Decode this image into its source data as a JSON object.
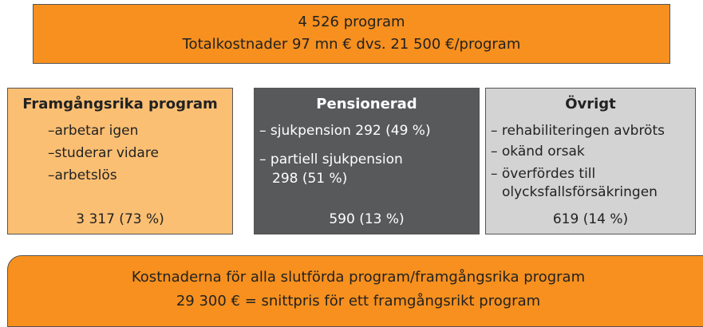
{
  "total": {
    "line1": "4 526 program",
    "line2": "Totalkostnader 97 mn € dvs. 21 500 €/program"
  },
  "columns": [
    {
      "title": "Framgångsrika program",
      "items": [
        "–arbetar igen",
        "–studerar vidare",
        "–arbetslös"
      ],
      "summary": "3 317 (73 %)"
    },
    {
      "title": "Pensionerad",
      "items": [
        "– sjukpension 292 (49 %)",
        "– partiell sjukpension",
        "298 (51 %)"
      ],
      "summary": "590 (13 %)"
    },
    {
      "title": "Övrigt",
      "items": [
        "– rehabiliteringen avbröts",
        "– okänd orsak",
        "– överfördes till",
        "olycksfallsförsäkringen"
      ],
      "summary": "619 (14 %)"
    }
  ],
  "footer": {
    "line1": "Kostnaderna för alla slutförda program/framgångsrika program",
    "line2": "29 300 € = snittpris för ett framgångsrikt program"
  }
}
